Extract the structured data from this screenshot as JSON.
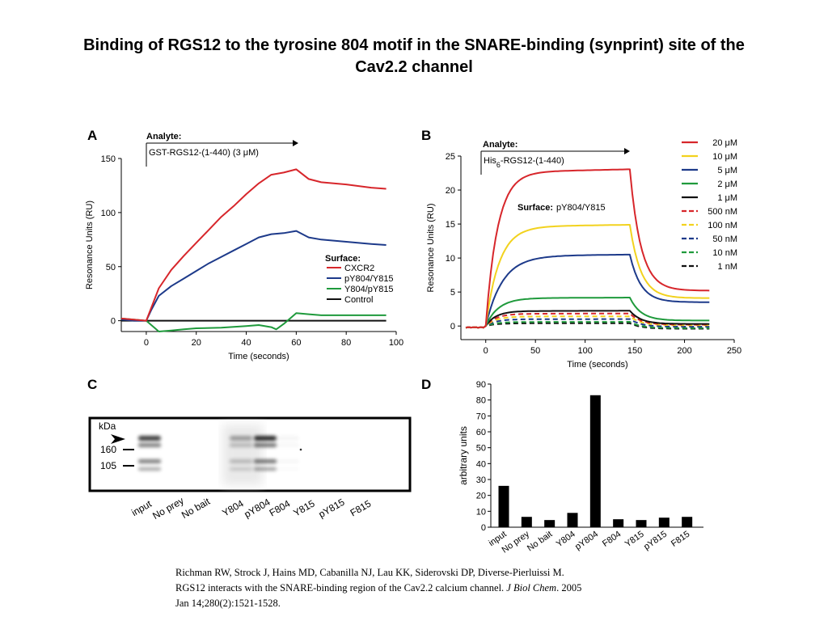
{
  "slide": {
    "title_line1": "Binding of RGS12 to the tyrosine 804 motif in the SNARE-binding (synprint) site of the",
    "title_line2": "Cav2.2 channel"
  },
  "citation": {
    "line1": "Richman RW, Strock J, Hains MD, Cabanilla NJ, Lau KK, Siderovski DP, Diverse-Pierluissi M.",
    "line2_a": "RGS12 interacts with the SNARE-binding region of the Cav2.2 calcium channel. ",
    "line2_journal": "J Biol Chem",
    "line2_b": ". 2005",
    "line3": "Jan 14;280(2):1521-1528."
  },
  "chart_data": [
    {
      "panel": "A",
      "type": "line",
      "annotation_title": "Analyte:",
      "annotation_text": "GST-RGS12-(1-440) (3 μM)",
      "xlabel": "Time (seconds)",
      "ylabel": "Resonance Units (RU)",
      "xlim": [
        -10,
        100
      ],
      "ylim": [
        -10,
        150
      ],
      "xticks": [
        0,
        20,
        40,
        60,
        80,
        100
      ],
      "yticks": [
        0,
        50,
        100,
        150
      ],
      "legend_title": "Surface:",
      "legend_position": "bottom-right",
      "series": [
        {
          "name": "CXCR2",
          "color": "#d7262b",
          "points": [
            [
              -10,
              2
            ],
            [
              -5,
              1
            ],
            [
              0,
              0
            ],
            [
              2,
              12
            ],
            [
              5,
              30
            ],
            [
              10,
              47
            ],
            [
              15,
              60
            ],
            [
              20,
              72
            ],
            [
              25,
              84
            ],
            [
              30,
              96
            ],
            [
              35,
              106
            ],
            [
              40,
              117
            ],
            [
              45,
              127
            ],
            [
              50,
              135
            ],
            [
              55,
              137
            ],
            [
              60,
              140
            ],
            [
              65,
              131
            ],
            [
              70,
              128
            ],
            [
              80,
              126
            ],
            [
              90,
              123
            ],
            [
              96,
              122
            ]
          ]
        },
        {
          "name": "pY804/Y815",
          "color": "#1d3a8a",
          "points": [
            [
              -10,
              1
            ],
            [
              -5,
              0
            ],
            [
              0,
              0
            ],
            [
              2,
              10
            ],
            [
              5,
              23
            ],
            [
              10,
              32
            ],
            [
              15,
              39
            ],
            [
              20,
              46
            ],
            [
              25,
              53
            ],
            [
              30,
              59
            ],
            [
              35,
              65
            ],
            [
              40,
              71
            ],
            [
              45,
              77
            ],
            [
              50,
              80
            ],
            [
              55,
              81
            ],
            [
              60,
              83
            ],
            [
              65,
              77
            ],
            [
              70,
              75
            ],
            [
              80,
              73
            ],
            [
              90,
              71
            ],
            [
              96,
              70
            ]
          ]
        },
        {
          "name": "Y804/pY815",
          "color": "#1f9a3c",
          "points": [
            [
              -10,
              2
            ],
            [
              -5,
              1
            ],
            [
              0,
              0
            ],
            [
              3,
              -6
            ],
            [
              5,
              -10
            ],
            [
              10,
              -9
            ],
            [
              15,
              -8
            ],
            [
              20,
              -7
            ],
            [
              30,
              -6.5
            ],
            [
              40,
              -5
            ],
            [
              45,
              -4
            ],
            [
              50,
              -6
            ],
            [
              52,
              -8
            ],
            [
              55,
              -3
            ],
            [
              60,
              7
            ],
            [
              65,
              6
            ],
            [
              70,
              5
            ],
            [
              80,
              5
            ],
            [
              90,
              5
            ],
            [
              96,
              5
            ]
          ]
        },
        {
          "name": "Control",
          "color": "#111111",
          "points": [
            [
              -10,
              0
            ],
            [
              96,
              0
            ]
          ]
        }
      ]
    },
    {
      "panel": "B",
      "type": "line",
      "annotation_title": "Analyte:",
      "annotation_text_main": "His",
      "annotation_text_sub": "6",
      "annotation_text_rest": "-RGS12-(1-440)",
      "surface_label": "Surface:",
      "surface_value": "pY804/Y815",
      "xlabel": "Time (seconds)",
      "ylabel": "Resonance Units (RU)",
      "xlim": [
        -25,
        250
      ],
      "ylim": [
        -2,
        25
      ],
      "xticks": [
        0,
        50,
        100,
        150,
        200,
        250
      ],
      "yticks": [
        0,
        5,
        10,
        15,
        20,
        25
      ],
      "legend_position": "top-right",
      "series": [
        {
          "name": "20 μM",
          "color": "#d7262b",
          "dash": "solid",
          "plateau": 22.6,
          "rise_k": 0.085,
          "end": 5.2
        },
        {
          "name": "10 μM",
          "color": "#f2d21e",
          "dash": "solid",
          "plateau": 14.6,
          "rise_k": 0.075,
          "end": 4.1
        },
        {
          "name": "5 μM",
          "color": "#1d3a8a",
          "dash": "solid",
          "plateau": 10.3,
          "rise_k": 0.06,
          "end": 3.5
        },
        {
          "name": "2 μM",
          "color": "#1f9a3c",
          "dash": "solid",
          "plateau": 4.1,
          "rise_k": 0.08,
          "end": 0.8
        },
        {
          "name": "1 μM",
          "color": "#111111",
          "dash": "solid",
          "plateau": 2.2,
          "rise_k": 0.1,
          "end": 0.3
        },
        {
          "name": "500 nM",
          "color": "#d7262b",
          "dash": "dash",
          "plateau": 1.8,
          "rise_k": 0.1,
          "end": 0.2
        },
        {
          "name": "100 nM",
          "color": "#f2d21e",
          "dash": "dash",
          "plateau": 1.4,
          "rise_k": 0.1,
          "end": 0.1
        },
        {
          "name": "50 nM",
          "color": "#1d3a8a",
          "dash": "dash",
          "plateau": 1.0,
          "rise_k": 0.1,
          "end": -0.1
        },
        {
          "name": "10 nM",
          "color": "#1f9a3c",
          "dash": "dash",
          "plateau": 0.6,
          "rise_k": 0.1,
          "end": -0.3
        },
        {
          "name": "1 nM",
          "color": "#111111",
          "dash": "dash",
          "plateau": 0.4,
          "rise_k": 0.1,
          "end": -0.4
        }
      ]
    },
    {
      "panel": "C",
      "type": "blot",
      "unit_label": "kDa",
      "markers": [
        "160",
        "105"
      ],
      "lane_labels": [
        "input",
        "No prey",
        "No bait",
        "Y804",
        "pY804",
        "F804",
        "Y815",
        "pY815",
        "F815"
      ],
      "band_intensity": [
        0.9,
        0.0,
        0.0,
        0.4,
        1.0,
        0.05,
        0.0,
        0.0,
        0.0
      ]
    },
    {
      "panel": "D",
      "type": "bar",
      "ylabel": "arbitrary units",
      "ylim": [
        0,
        90
      ],
      "yticks": [
        0,
        10,
        20,
        30,
        40,
        50,
        60,
        70,
        80,
        90
      ],
      "categories": [
        "input",
        "No prey",
        "No bait",
        "Y804",
        "pY804",
        "F804",
        "Y815",
        "pY815",
        "F815"
      ],
      "values": [
        26,
        6.5,
        4.5,
        9,
        83,
        5,
        4.5,
        6,
        6.5
      ],
      "bar_color": "#000000"
    }
  ]
}
